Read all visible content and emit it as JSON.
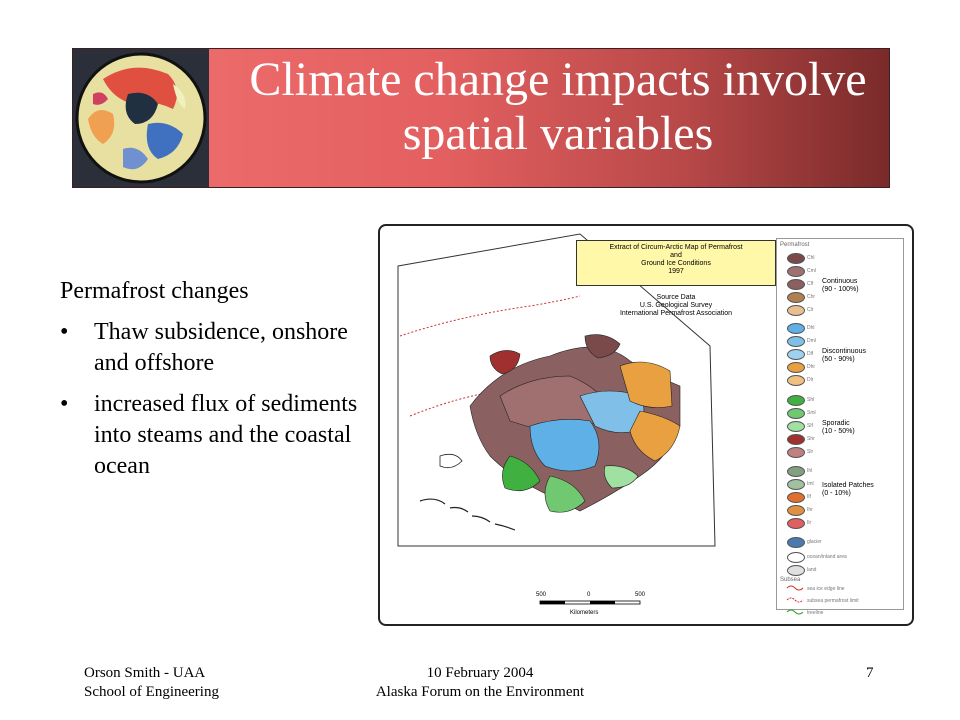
{
  "slide": {
    "title": "Climate change impacts involve spatial variables",
    "lead": "Permafrost changes",
    "bullets": [
      "Thaw subsidence, onshore and offshore",
      "increased flux of sediments into steams and the coastal ocean"
    ],
    "bullet_glyph": "•"
  },
  "map": {
    "title_lines": [
      "Extract of Circum-Arctic Map of Permafrost",
      "and",
      "Ground Ice Conditions",
      "1997"
    ],
    "source_lines": [
      "Source Data",
      "U.S. Geological Survey",
      "International Permafrost Association"
    ],
    "legend_header": "Permafrost",
    "categories": [
      {
        "name": "Continuous",
        "range": "(90 - 100%)",
        "codes": [
          "Chl",
          "Cml",
          "Clf",
          "Chr",
          "Clr"
        ],
        "colors": [
          "#7a4a4a",
          "#a07070",
          "#8a6060",
          "#b08050",
          "#e8c090"
        ]
      },
      {
        "name": "Discontinuous",
        "range": "(50 - 90%)",
        "codes": [
          "Dhl",
          "Dml",
          "Dlf",
          "Dhr",
          "Dlr"
        ],
        "colors": [
          "#60b0e8",
          "#80c0e8",
          "#a0d0f0",
          "#e8a040",
          "#f0c080"
        ]
      },
      {
        "name": "Sporadic",
        "range": "(10 - 50%)",
        "codes": [
          "Shl",
          "Sml",
          "Slf",
          "Shr",
          "Slr"
        ],
        "colors": [
          "#40b040",
          "#70c870",
          "#a0e0a0",
          "#a03030",
          "#c08080"
        ]
      },
      {
        "name": "Isolated Patches",
        "range": "(0 - 10%)",
        "codes": [
          "Ihl",
          "Iml",
          "Ilf",
          "Ihr",
          "Ilr"
        ],
        "colors": [
          "#80a080",
          "#a0c0a0",
          "#e07030",
          "#e09040",
          "#e06060"
        ]
      }
    ],
    "other_items": [
      "glacier",
      "ocean/inland area",
      "land"
    ],
    "lines_header": "Subsea",
    "line_items": [
      "sea ice edge line",
      "subsea permafrost limit",
      "treeline"
    ],
    "scale": {
      "ticks": [
        "500",
        "0",
        "500"
      ],
      "unit": "Kilometers"
    }
  },
  "footer": {
    "left_line1": "Orson Smith - UAA",
    "left_line2": "School of Engineering",
    "center_line1": "10 February 2004",
    "center_line2": "Alaska Forum on the Environment",
    "page_number": "7"
  },
  "colors": {
    "banner_light": "#f07070",
    "banner_dark": "#7a2a2a",
    "title_text": "#ffffff"
  }
}
